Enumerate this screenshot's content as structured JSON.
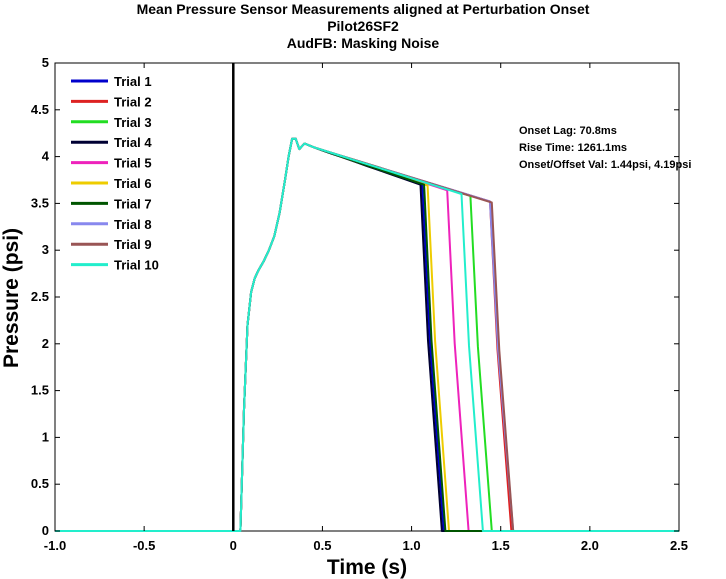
{
  "chart_data": {
    "type": "line",
    "title": [
      "Mean Pressure Sensor Measurements aligned at Perturbation Onset",
      "Pilot26SF2",
      "AudFB: Masking Noise"
    ],
    "xlabel": "Time (s)",
    "ylabel": "Pressure (psi)",
    "xlim": [
      -1.0,
      2.5
    ],
    "ylim": [
      0,
      5
    ],
    "xticks": [
      -1.0,
      -0.5,
      0,
      0.5,
      1.0,
      1.5,
      2.0,
      2.5
    ],
    "xtick_labels": [
      "-1.0",
      "-0.5",
      "0",
      "0.5",
      "1.0",
      "1.5",
      "2.0",
      "2.5"
    ],
    "yticks": [
      0,
      0.5,
      1,
      1.5,
      2,
      2.5,
      3,
      3.5,
      4,
      4.5,
      5
    ],
    "ytick_labels": [
      "0",
      "0.5",
      "1",
      "1.5",
      "2",
      "2.5",
      "3",
      "3.5",
      "4",
      "4.5",
      "5"
    ],
    "grid": false,
    "legend_position": "top-left",
    "onset_marker_x": 0,
    "annotations": [
      "Onset Lag: 70.8ms",
      "Rise Time: 1261.1ms",
      "Onset/Offset Val: 1.44psi, 4.19psi"
    ],
    "series": [
      {
        "name": "Trial 1",
        "color": "#0000cc",
        "offset_start": 1.06,
        "offset_end": 1.18,
        "offset_value": 3.7
      },
      {
        "name": "Trial 2",
        "color": "#dd2222",
        "offset_start": 1.44,
        "offset_end": 1.56,
        "offset_value": 3.52
      },
      {
        "name": "Trial 3",
        "color": "#22dd22",
        "offset_start": 1.33,
        "offset_end": 1.45,
        "offset_value": 3.58
      },
      {
        "name": "Trial 4",
        "color": "#000033",
        "offset_start": 1.05,
        "offset_end": 1.17,
        "offset_value": 3.7
      },
      {
        "name": "Trial 5",
        "color": "#ee22bb",
        "offset_start": 1.2,
        "offset_end": 1.32,
        "offset_value": 3.64
      },
      {
        "name": "Trial 6",
        "color": "#eecc00",
        "offset_start": 1.09,
        "offset_end": 1.21,
        "offset_value": 3.69
      },
      {
        "name": "Trial 7",
        "color": "#005500",
        "offset_start": 1.07,
        "offset_end": 1.19,
        "offset_value": 3.7
      },
      {
        "name": "Trial 8",
        "color": "#8888ee",
        "offset_start": 1.44,
        "offset_end": 1.57,
        "offset_value": 3.52
      },
      {
        "name": "Trial 9",
        "color": "#995555",
        "offset_start": 1.45,
        "offset_end": 1.57,
        "offset_value": 3.51
      },
      {
        "name": "Trial 10",
        "color": "#22eecc",
        "offset_start": 1.28,
        "offset_end": 1.4,
        "offset_value": 3.6
      }
    ],
    "shared_rise_profile": {
      "x": [
        -1.0,
        0.04,
        0.06,
        0.08,
        0.1,
        0.12,
        0.14,
        0.17,
        0.2,
        0.23,
        0.26,
        0.29,
        0.31,
        0.33,
        0.35,
        0.37,
        0.4,
        0.45
      ],
      "y": [
        0.0,
        0.0,
        1.3,
        2.2,
        2.55,
        2.7,
        2.78,
        2.88,
        3.0,
        3.15,
        3.4,
        3.75,
        4.0,
        4.19,
        4.19,
        4.08,
        4.14,
        4.1
      ]
    }
  }
}
